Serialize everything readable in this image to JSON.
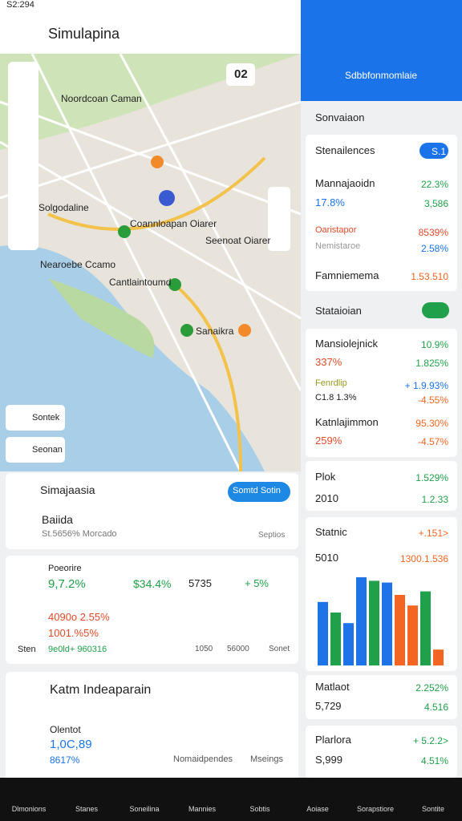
{
  "status_bar": {
    "time": "S2:294"
  },
  "top_bar": {
    "title": "Simulapina"
  },
  "map": {
    "labels": [
      "Noordcoan Caman",
      "Solgodaline",
      "Coannloapan Oiarer",
      "Seenoat Oiarer",
      "Nearoebe Ccamo",
      "Cantlaintoumd",
      "Sanaikra"
    ],
    "badge": "02",
    "chips": [
      "Sontek",
      "Seonan"
    ]
  },
  "card1": {
    "title": "Simajaasia",
    "button": "Somtd Sotin",
    "name": "Baiida",
    "subtitle": "St.5656% Morcado",
    "action": "Septios"
  },
  "card2": {
    "title": "Poeorire",
    "items": [
      "9,7.2%",
      "$34.4%",
      "5735",
      "+ 5%",
      "4090o 2.55%",
      "1001.%5%",
      "Sten",
      "9e0ld+ 960316",
      "1050",
      "56000",
      "Sonet"
    ]
  },
  "card3": {
    "title": "Katm Indeaparain",
    "label": "Olentot",
    "value": "1,0C,89",
    "change": "8617%",
    "links": [
      "Nomaidpendes",
      "Mseings"
    ]
  },
  "right_panel": {
    "user": "Sdbbfonmomlaie",
    "toggle_label": "Sonvaiaon",
    "rows": [
      [
        "Stenailences",
        "S.1"
      ],
      [
        "Mannajaoidn",
        "22.3%"
      ],
      [
        "17.8%",
        "3,586"
      ],
      [
        "Oaristapor",
        "8539%"
      ],
      [
        "Nemistaroe",
        "2.58%"
      ],
      [
        "Famniemema",
        "1.53.510"
      ],
      [
        "Stataioian"
      ],
      [
        "Mansiolejnick",
        "10.9%"
      ],
      [
        "337%",
        "1.825%"
      ],
      [
        "Fenrdlip",
        "+ 1.9.93%"
      ],
      [
        "C1.8 1.3%",
        "-4.55%"
      ],
      [
        "Katnlajimmon",
        "95.30%"
      ],
      [
        "259%",
        "-4.57%"
      ],
      [
        "Plok",
        "1.529%"
      ],
      [
        "2010",
        "1.2.33"
      ],
      [
        "Statnic",
        "+.151>"
      ],
      [
        "5010",
        "1300.1.536"
      ],
      [
        "Matlaot",
        "2.252%"
      ],
      [
        "5,729",
        "4.516"
      ],
      [
        "Plarlora",
        "+ 5.2.2>"
      ],
      [
        "S,999",
        "4.51%"
      ]
    ],
    "chart": {
      "ylim": [
        0,
        100
      ],
      "values": [
        72,
        60,
        48,
        100,
        96,
        94,
        80,
        68,
        84,
        18
      ],
      "colors": [
        "#1e73e8",
        "#20a04a",
        "#1e73e8",
        "#1e73e8",
        "#20a04a",
        "#1e73e8",
        "#f26522",
        "#f26522",
        "#20a04a",
        "#f26522"
      ]
    }
  },
  "bottom_nav": [
    "Dlmonions",
    "Stanes",
    "Soneilina",
    "Mannies",
    "Sobtis",
    "Aoiase",
    "Sorapstiore",
    "Sontite"
  ]
}
